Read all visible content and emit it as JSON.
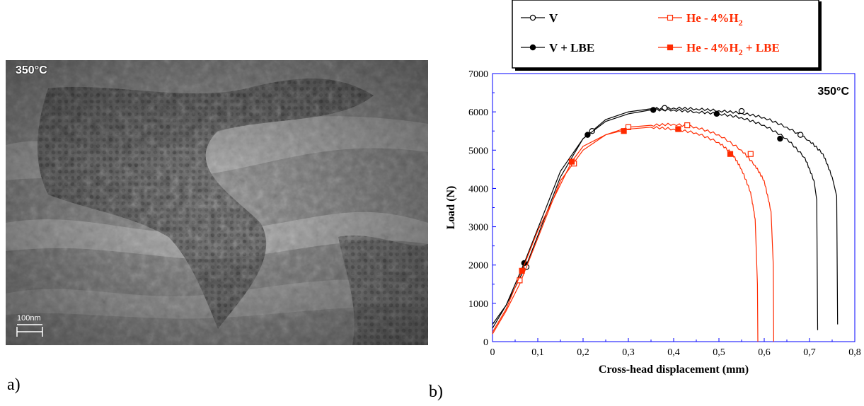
{
  "panel_a": {
    "label": "a)",
    "temperature": "350°C",
    "scale_bar": "100nm"
  },
  "panel_b": {
    "label": "b)"
  },
  "chart_data": {
    "type": "line",
    "title": "350°C",
    "xlabel": "Cross-head displacement (mm)",
    "ylabel": "Load (N)",
    "xlim": [
      0,
      0.8
    ],
    "ylim": [
      0,
      7000
    ],
    "xticks": [
      "0",
      "0,1",
      "0,2",
      "0,3",
      "0,4",
      "0,5",
      "0,6",
      "0,7",
      "0,8"
    ],
    "yticks": [
      "0",
      "1000",
      "2000",
      "3000",
      "4000",
      "5000",
      "6000",
      "7000"
    ],
    "legend_placement": "top",
    "series": [
      {
        "name": "V",
        "color": "#000000",
        "marker": "open-circle",
        "x": [
          0,
          0.03,
          0.075,
          0.15,
          0.2,
          0.25,
          0.3,
          0.35,
          0.4,
          0.45,
          0.5,
          0.55,
          0.6,
          0.65,
          0.7,
          0.73,
          0.75,
          0.76,
          0.762
        ],
        "y": [
          350,
          950,
          2000,
          4300,
          5300,
          5800,
          6000,
          6080,
          6100,
          6080,
          6030,
          5970,
          5850,
          5600,
          5250,
          4900,
          4300,
          3800,
          450
        ],
        "marker_x": [
          0.075,
          0.22,
          0.38,
          0.55,
          0.68
        ],
        "marker_y": [
          1950,
          5500,
          6100,
          6020,
          5400
        ]
      },
      {
        "name": "V + LBE",
        "color": "#000000",
        "marker": "filled-circle",
        "x": [
          0,
          0.03,
          0.07,
          0.15,
          0.2,
          0.25,
          0.3,
          0.35,
          0.4,
          0.45,
          0.5,
          0.55,
          0.6,
          0.65,
          0.69,
          0.71,
          0.716,
          0.718
        ],
        "y": [
          450,
          950,
          2050,
          4450,
          5300,
          5750,
          5950,
          6050,
          6050,
          6000,
          5950,
          5850,
          5650,
          5300,
          4800,
          4200,
          3700,
          300
        ],
        "marker_x": [
          0.07,
          0.21,
          0.355,
          0.495,
          0.635
        ],
        "marker_y": [
          2050,
          5400,
          6050,
          5950,
          5300
        ]
      },
      {
        "name": "He - 4%H2",
        "color": "#ff2a00",
        "marker": "open-square",
        "x": [
          0,
          0.03,
          0.06,
          0.1,
          0.15,
          0.2,
          0.25,
          0.3,
          0.35,
          0.4,
          0.45,
          0.5,
          0.55,
          0.58,
          0.6,
          0.615,
          0.62,
          0.621
        ],
        "y": [
          200,
          800,
          1500,
          2700,
          4200,
          5000,
          5400,
          5600,
          5650,
          5680,
          5600,
          5400,
          5000,
          4600,
          4200,
          3400,
          2000,
          0
        ],
        "marker_x": [
          0.06,
          0.18,
          0.3,
          0.43,
          0.57
        ],
        "marker_y": [
          1600,
          4650,
          5600,
          5650,
          4900
        ]
      },
      {
        "name": "He - 4%H2 + LBE",
        "color": "#ff2a00",
        "marker": "filled-square",
        "x": [
          0,
          0.03,
          0.065,
          0.1,
          0.175,
          0.2,
          0.25,
          0.3,
          0.35,
          0.4,
          0.45,
          0.5,
          0.53,
          0.55,
          0.57,
          0.58,
          0.585,
          0.586
        ],
        "y": [
          250,
          850,
          1850,
          2900,
          4700,
          5100,
          5400,
          5550,
          5600,
          5550,
          5450,
          5200,
          4900,
          4500,
          3900,
          3200,
          1500,
          0
        ],
        "marker_x": [
          0.065,
          0.175,
          0.29,
          0.41,
          0.525
        ],
        "marker_y": [
          1850,
          4700,
          5500,
          5550,
          4900
        ]
      }
    ]
  }
}
